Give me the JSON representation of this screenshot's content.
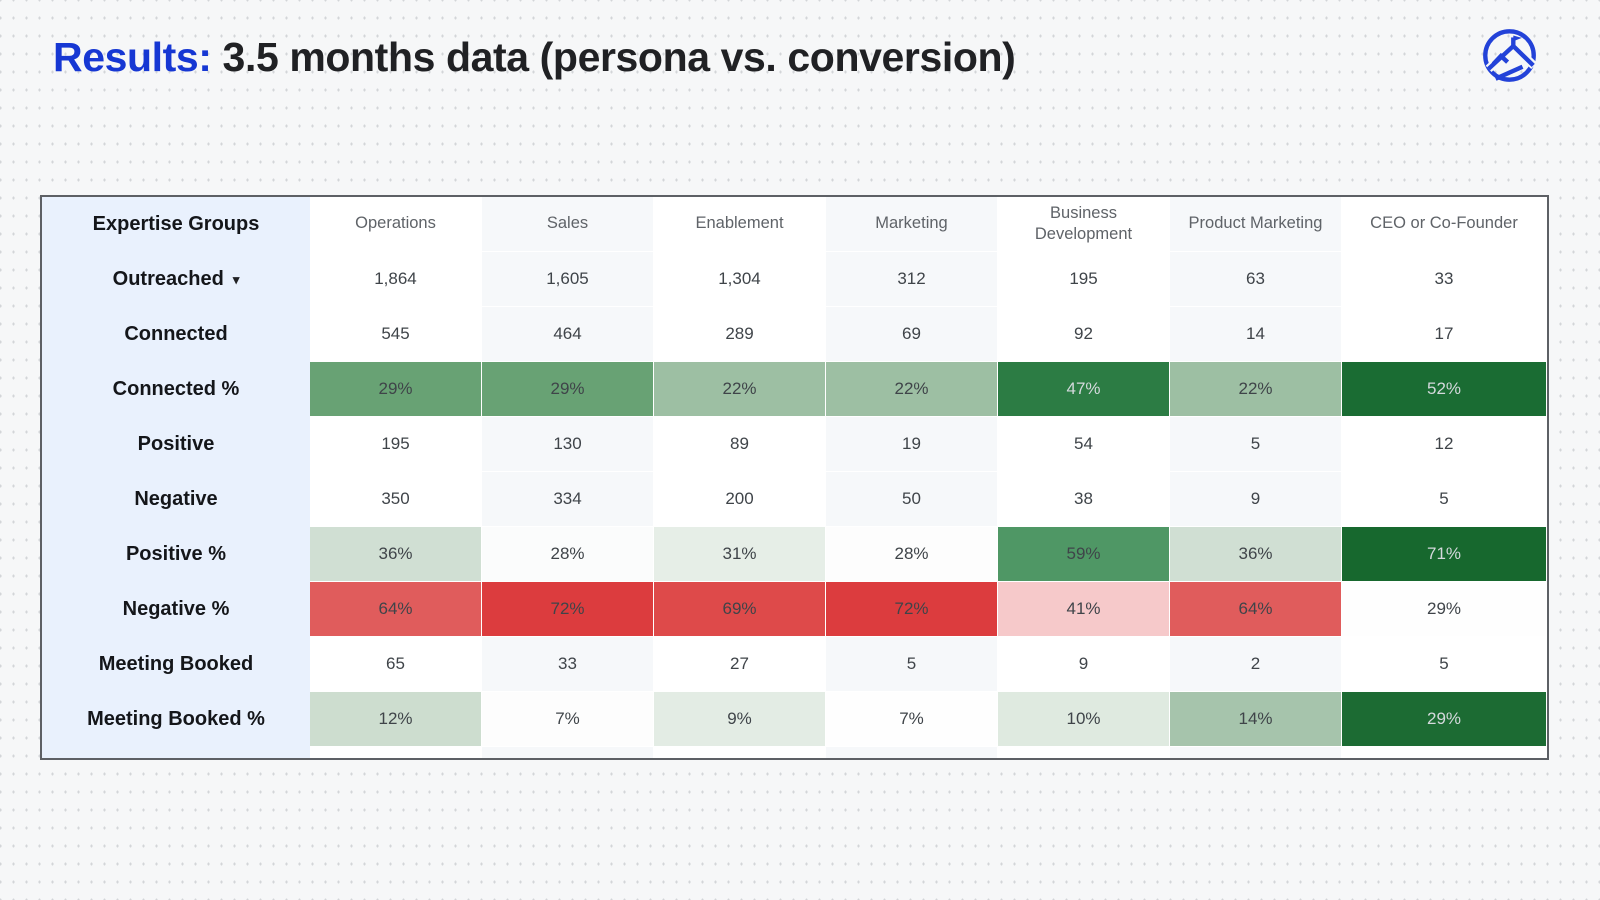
{
  "header": {
    "title_highlight": "Results:",
    "title_rest": " 3.5 months data (persona vs. conversion)",
    "logo_icon": "mountain-flag-logo-icon",
    "dropdown_glyph": "▾"
  },
  "colors": {
    "accent_blue": "#1637d3",
    "logo_blue": "#2342d8",
    "page_bg": "#f6f7f8",
    "dot_color": "#d3d5d8",
    "label_column_bg": "#e9f1fd",
    "alt_column_bg": "#f6f8fa",
    "table_border": "#5d6065",
    "header_text": "#5f6368",
    "data_text": "#3f4449",
    "light_cell_text": "#d4d9dc"
  },
  "chart_data": {
    "type": "table",
    "title": "Results: 3.5 months data (persona vs. conversion)",
    "row_header_label": "Expertise Groups",
    "columns": [
      "Operations",
      "Sales",
      "Enablement",
      "Marketing",
      "Business Development",
      "Product Marketing",
      "CEO or Co-Founder"
    ],
    "rows": [
      {
        "label": "Outreached",
        "has_dropdown": true,
        "values": [
          "1,864",
          "1,605",
          "1,304",
          "312",
          "195",
          "63",
          "33"
        ]
      },
      {
        "label": "Connected",
        "values": [
          "545",
          "464",
          "289",
          "69",
          "92",
          "14",
          "17"
        ]
      },
      {
        "label": "Connected %",
        "values": [
          "29%",
          "29%",
          "22%",
          "22%",
          "47%",
          "22%",
          "52%"
        ],
        "bg": [
          "#68a274",
          "#68a274",
          "#9dbfa3",
          "#9dbfa3",
          "#2c7c44",
          "#9dbfa3",
          "#1a6c33"
        ],
        "fg": [
          null,
          null,
          null,
          null,
          "#d4d9dc",
          null,
          "#d4d9dc"
        ]
      },
      {
        "label": "Positive",
        "values": [
          "195",
          "130",
          "89",
          "19",
          "54",
          "5",
          "12"
        ]
      },
      {
        "label": "Negative",
        "values": [
          "350",
          "334",
          "200",
          "50",
          "38",
          "9",
          "5"
        ]
      },
      {
        "label": "Positive %",
        "values": [
          "36%",
          "28%",
          "31%",
          "28%",
          "59%",
          "36%",
          "71%"
        ],
        "bg": [
          "#d0dfd3",
          "#fbfcfc",
          "#e6eee7",
          "#fdfdfd",
          "#4f9765",
          "#d0dfd3",
          "#17682e"
        ],
        "fg": [
          null,
          null,
          null,
          null,
          null,
          null,
          "#d4d9dc"
        ]
      },
      {
        "label": "Negative %",
        "values": [
          "64%",
          "72%",
          "69%",
          "72%",
          "41%",
          "64%",
          "29%"
        ],
        "bg": [
          "#e05c5c",
          "#dc3c3e",
          "#de4a4a",
          "#dc3c3e",
          "#f6c9ca",
          "#e05c5c",
          "#fefefe"
        ],
        "fg": [
          null,
          null,
          null,
          null,
          null,
          null,
          null
        ]
      },
      {
        "label": "Meeting Booked",
        "values": [
          "65",
          "33",
          "27",
          "5",
          "9",
          "2",
          "5"
        ]
      },
      {
        "label": "Meeting Booked %",
        "values": [
          "12%",
          "7%",
          "9%",
          "7%",
          "10%",
          "14%",
          "29%"
        ],
        "bg": [
          "#cdddcf",
          "#fdfdfd",
          "#e3ece4",
          "#fefefe",
          "#dfeae0",
          "#a6c4ac",
          "#1c6b33"
        ],
        "fg": [
          null,
          null,
          null,
          null,
          null,
          null,
          "#d4d9dc"
        ]
      }
    ],
    "legend_position": "none",
    "grid": "white gridlines between heatmap cells, alternating column shading"
  }
}
